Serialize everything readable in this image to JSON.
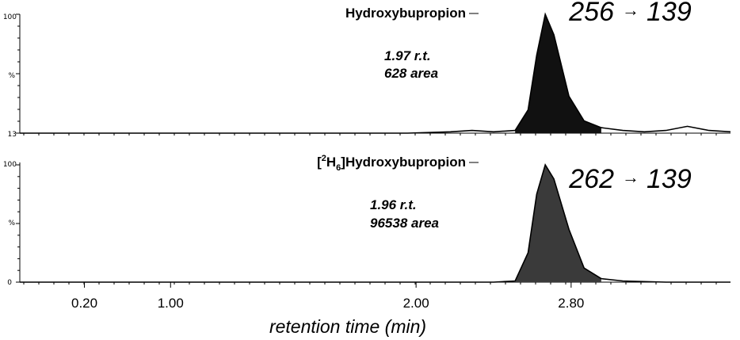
{
  "chart_data": [
    {
      "type": "line",
      "ylim": [
        13,
        100
      ],
      "yticks": [
        "100",
        "%",
        "13"
      ],
      "xlim": [
        0.0,
        3.3
      ],
      "compound": "Hydroxybupropion",
      "transition": {
        "precursor": "256",
        "arrow": "→",
        "product": "139"
      },
      "annotation": {
        "rt": "1.97 r.t.",
        "area": "628 area"
      },
      "peak": {
        "x": 2.44,
        "y": 100,
        "fill": "#111111"
      },
      "baseline_noise": true,
      "series": [
        {
          "x": [
            0.0,
            0.3,
            0.6,
            0.9,
            1.2,
            1.5,
            1.8,
            2.0,
            2.1,
            2.2,
            2.3,
            2.36,
            2.4,
            2.44,
            2.48,
            2.55,
            2.62,
            2.7,
            2.8,
            2.9,
            3.0,
            3.1,
            3.2,
            3.3
          ],
          "y": [
            13,
            13,
            13,
            13,
            13,
            13,
            13,
            14,
            15,
            14,
            15,
            30,
            70,
            100,
            85,
            40,
            22,
            17,
            15,
            14,
            15,
            18,
            15,
            14
          ]
        }
      ]
    },
    {
      "type": "line",
      "ylim": [
        0,
        100
      ],
      "yticks": [
        "100",
        "%",
        "0"
      ],
      "xlim": [
        0.0,
        3.3
      ],
      "compound_parts": {
        "open": "[",
        "sup": "2",
        "element": "H",
        "sub": "6",
        "rest": "]Hydroxybupropion"
      },
      "transition": {
        "precursor": "262",
        "arrow": "→",
        "product": "139"
      },
      "annotation": {
        "rt": "1.96 r.t.",
        "area": "96538 area"
      },
      "peak": {
        "x": 2.44,
        "y": 100,
        "fill": "#3a3a3a"
      },
      "series": [
        {
          "x": [
            0.0,
            0.5,
            1.0,
            1.5,
            2.0,
            2.2,
            2.3,
            2.36,
            2.4,
            2.44,
            2.48,
            2.55,
            2.62,
            2.7,
            2.8,
            3.0,
            3.3
          ],
          "y": [
            0,
            0,
            0,
            0,
            0,
            0,
            1,
            25,
            75,
            100,
            88,
            45,
            12,
            3,
            1,
            0,
            0
          ]
        }
      ]
    }
  ],
  "x_axis": {
    "tick_values": [
      0.3,
      0.7,
      1.84,
      2.56
    ],
    "tick_labels": [
      "0.20",
      "1.00",
      "2.00",
      "2.80"
    ],
    "label": "retention time (min)"
  }
}
